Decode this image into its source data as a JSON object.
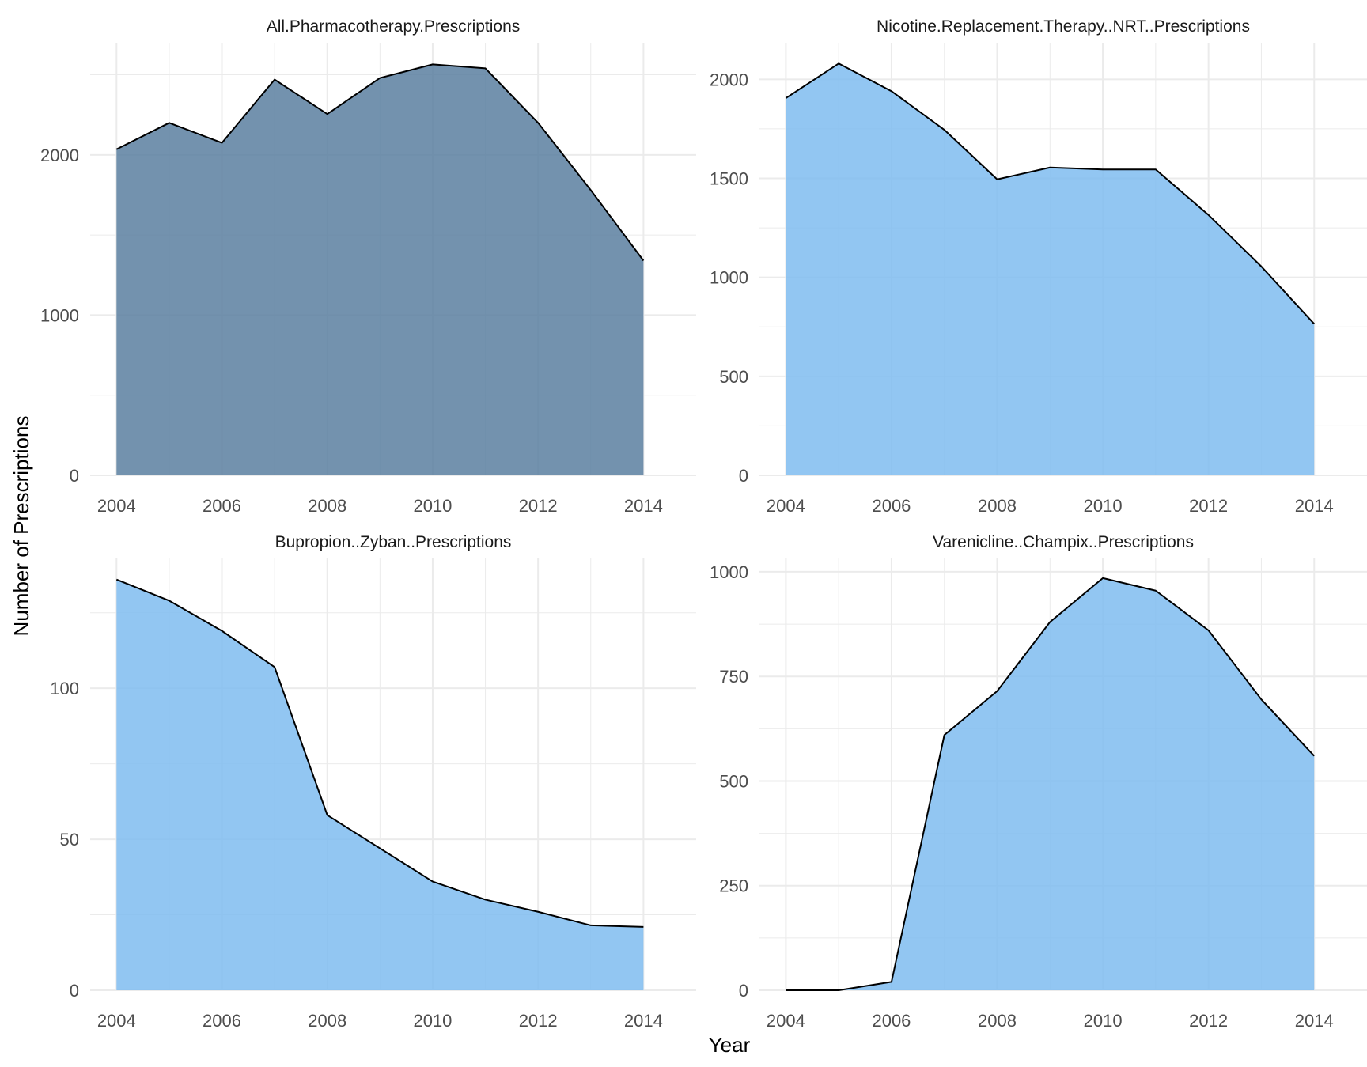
{
  "page": {
    "xlabel": "Year",
    "ylabel": "Number of Prescriptions"
  },
  "colors": {
    "dark_fill": "#5b7fa0",
    "light_fill": "#7fbcf0",
    "line": "#000000",
    "grid": "#ebebeb",
    "tick_text": "#4d4d4d",
    "axis_title": "#000000",
    "strip_text": "#1a1a1a"
  },
  "chart_data": [
    {
      "type": "area",
      "title": "All.Pharmacotherapy.Prescriptions",
      "fill": "dark",
      "x": [
        2004,
        2005,
        2006,
        2007,
        2008,
        2009,
        2010,
        2011,
        2012,
        2013,
        2014
      ],
      "values": [
        2035,
        2200,
        2075,
        2470,
        2255,
        2480,
        2565,
        2540,
        2200,
        1780,
        1340
      ],
      "xlim": [
        2003.5,
        2015.0
      ],
      "ylim": [
        0,
        2700
      ],
      "xticks": [
        "2004",
        "2006",
        "2008",
        "2010",
        "2012",
        "2014"
      ],
      "yticks": [
        "0",
        "1000",
        "2000"
      ],
      "grid": true
    },
    {
      "type": "area",
      "title": "Nicotine.Replacement.Therapy..NRT..Prescriptions",
      "fill": "light",
      "x": [
        2004,
        2005,
        2006,
        2007,
        2008,
        2009,
        2010,
        2011,
        2012,
        2013,
        2014
      ],
      "values": [
        1905,
        2080,
        1940,
        1745,
        1495,
        1555,
        1545,
        1545,
        1315,
        1055,
        765
      ],
      "xlim": [
        2003.5,
        2015.0
      ],
      "ylim": [
        0,
        2185
      ],
      "xticks": [
        "2004",
        "2006",
        "2008",
        "2010",
        "2012",
        "2014"
      ],
      "yticks": [
        "0",
        "500",
        "1000",
        "1500",
        "2000"
      ],
      "grid": true
    },
    {
      "type": "area",
      "title": "Bupropion..Zyban..Prescriptions",
      "fill": "light",
      "x": [
        2004,
        2005,
        2006,
        2007,
        2008,
        2009,
        2010,
        2011,
        2012,
        2013,
        2014
      ],
      "values": [
        136,
        129,
        119,
        107,
        58,
        47,
        36,
        30,
        26,
        21.5,
        21
      ],
      "xlim": [
        2003.5,
        2015.0
      ],
      "ylim": [
        0,
        143
      ],
      "xticks": [
        "2004",
        "2006",
        "2008",
        "2010",
        "2012",
        "2014"
      ],
      "yticks": [
        "0",
        "50",
        "100"
      ],
      "grid": true
    },
    {
      "type": "area",
      "title": "Varenicline..Champix..Prescriptions",
      "fill": "light",
      "x": [
        2004,
        2005,
        2006,
        2007,
        2008,
        2009,
        2010,
        2011,
        2012,
        2013,
        2014
      ],
      "values": [
        0,
        0,
        20,
        610,
        715,
        880,
        985,
        955,
        860,
        695,
        560
      ],
      "xlim": [
        2003.5,
        2015.0
      ],
      "ylim": [
        0,
        1032
      ],
      "xticks": [
        "2004",
        "2006",
        "2008",
        "2010",
        "2012",
        "2014"
      ],
      "yticks": [
        "0",
        "250",
        "500",
        "750",
        "1000"
      ],
      "grid": true
    }
  ]
}
